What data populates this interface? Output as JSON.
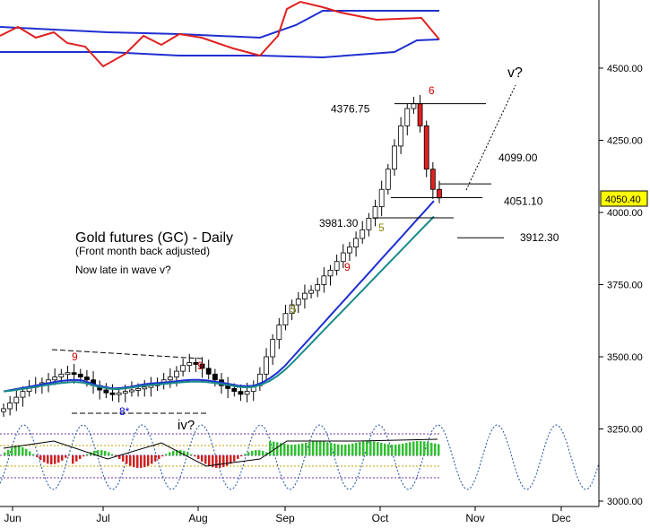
{
  "chart_data": {
    "type": "candlestick",
    "title": "Gold futures (GC) - Daily",
    "subtitle": "(Front month back adjusted)",
    "note": "Now late in wave v?",
    "current_price": "4050.40",
    "y_ticks": [
      "4500.00",
      "4250.00",
      "4000.00",
      "3750.00",
      "3500.00",
      "3250.00",
      "3000.00"
    ],
    "x_ticks": [
      "Jun",
      "Jul",
      "Aug",
      "Sep",
      "Oct",
      "Nov",
      "Dec"
    ],
    "levels": [
      {
        "label": "4376.75",
        "value": 4376.75
      },
      {
        "label": "4099.00",
        "value": 4099.0
      },
      {
        "label": "4051.10",
        "value": 4051.1
      },
      {
        "label": "3981.30",
        "value": 3981.3
      },
      {
        "label": "3912.30",
        "value": 3912.3
      }
    ],
    "wave_labels": [
      {
        "text": "v?",
        "color": "#000000"
      },
      {
        "text": "iv?",
        "color": "#000000"
      },
      {
        "text": "8*",
        "color": "#0000cc"
      }
    ],
    "count_labels": [
      {
        "text": "9",
        "color": "#cc0000"
      },
      {
        "text": "9",
        "color": "#cc0000"
      },
      {
        "text": "5",
        "color": "#808000"
      },
      {
        "text": "9",
        "color": "#cc0000"
      },
      {
        "text": "5",
        "color": "#808000"
      },
      {
        "text": "6",
        "color": "#cc0000"
      }
    ],
    "series": [
      {
        "values": [
          3320,
          3340,
          3360,
          3380,
          3395,
          3400,
          3410,
          3420,
          3430,
          3440,
          3445,
          3440,
          3430,
          3420,
          3400,
          3385,
          3375,
          3370,
          3375,
          3380,
          3385,
          3390,
          3395,
          3400,
          3410,
          3420,
          3430,
          3450,
          3470,
          3480,
          3475,
          3460,
          3440,
          3420,
          3400,
          3390,
          3380,
          3370,
          3380,
          3400,
          3440,
          3500,
          3560,
          3610,
          3650,
          3680,
          3700,
          3720,
          3730,
          3750,
          3780,
          3800,
          3830,
          3860,
          3880,
          3910,
          3940,
          3980,
          4020,
          4080,
          4150,
          4230,
          4300,
          4360,
          4376.75,
          4300,
          4150,
          4080,
          4050.4
        ]
      },
      {
        "values": [
          3380,
          3385,
          3390,
          3395,
          3400,
          3405,
          3410,
          3415,
          3418,
          3420,
          3418,
          3410,
          3400,
          3395,
          3390,
          3392,
          3395,
          3400,
          3405,
          3408,
          3410,
          3412,
          3415,
          3418,
          3420,
          3420,
          3418,
          3414,
          3410,
          3405,
          3400,
          3398,
          3400,
          3410,
          3425,
          3445,
          3470,
          3500,
          3530,
          3560,
          3590,
          3620,
          3650,
          3680,
          3710,
          3740,
          3770,
          3800,
          3830,
          3860,
          3890,
          3920,
          3950,
          3980,
          4010,
          4040
        ]
      },
      {
        "values": [
          3380,
          3383,
          3387,
          3391,
          3395,
          3400,
          3404,
          3408,
          3411,
          3413,
          3411,
          3405,
          3397,
          3392,
          3388,
          3389,
          3392,
          3396,
          3400,
          3403,
          3405,
          3407,
          3410,
          3412,
          3414,
          3414,
          3412,
          3409,
          3405,
          3401,
          3396,
          3394,
          3396,
          3404,
          3416,
          3434,
          3456,
          3482,
          3510,
          3538,
          3566,
          3594,
          3622,
          3650,
          3678,
          3706,
          3734,
          3762,
          3790,
          3818,
          3846,
          3874,
          3902,
          3930,
          3958,
          3986
        ]
      }
    ]
  }
}
